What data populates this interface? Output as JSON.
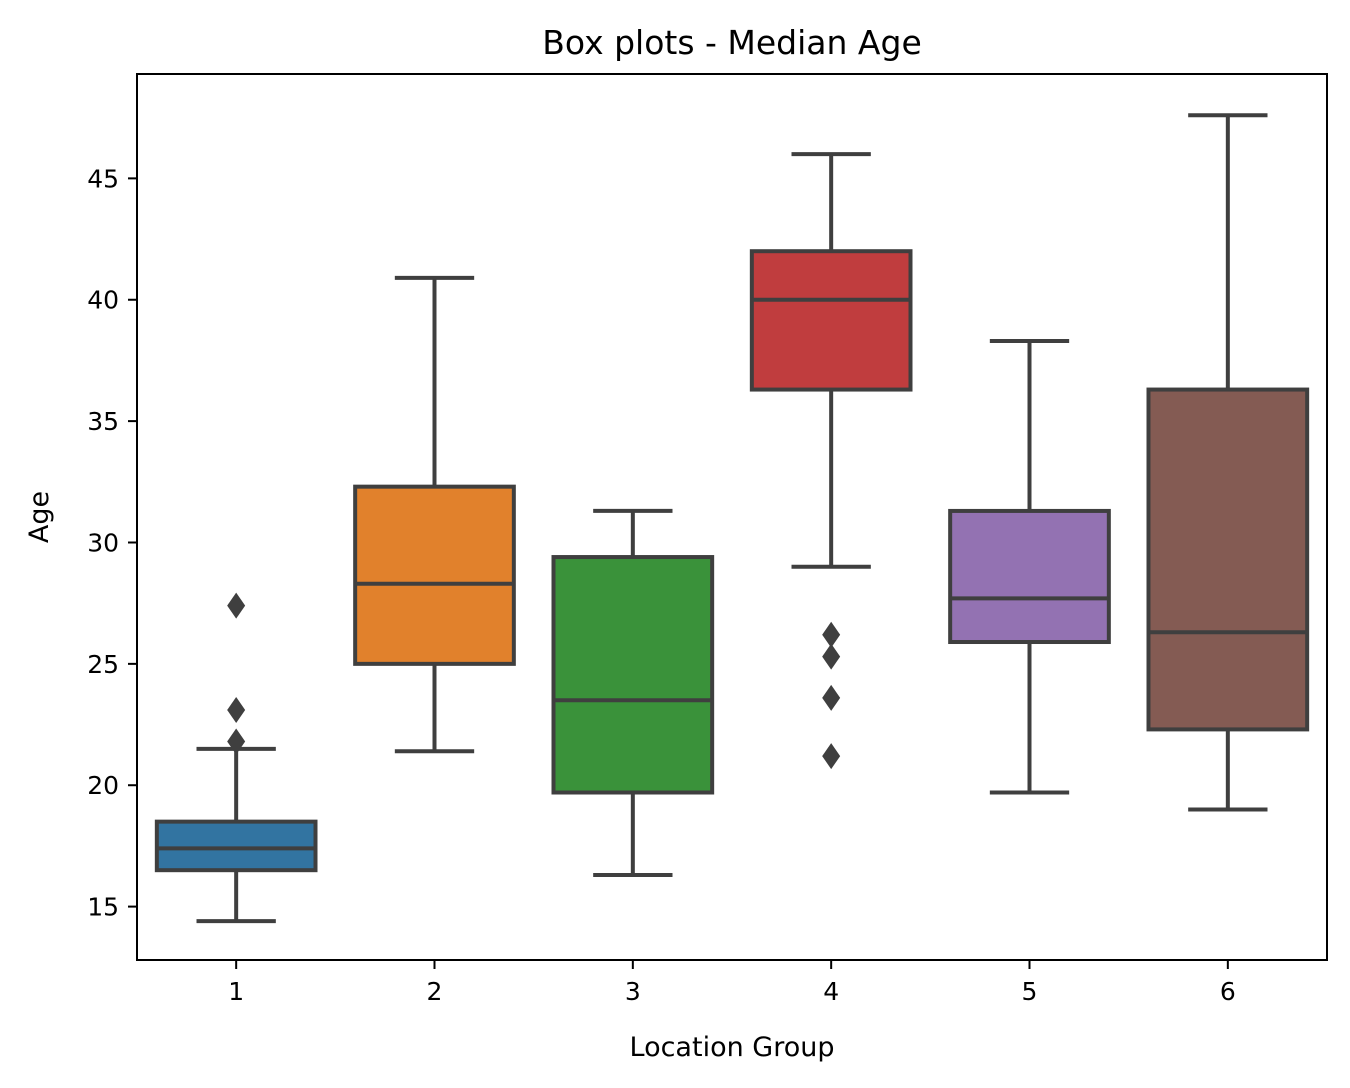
{
  "chart_data": {
    "type": "box",
    "title": "Box plots - Median Age",
    "xlabel": "Location Group",
    "ylabel": "Age",
    "ylim": [
      12.8,
      49.3
    ],
    "yticks": [
      15,
      20,
      25,
      30,
      35,
      40,
      45
    ],
    "grid": false,
    "categories": [
      "1",
      "2",
      "3",
      "4",
      "5",
      "6"
    ],
    "boxes": [
      {
        "category": "1",
        "color": "#3274a1",
        "whisker_low": 14.4,
        "q1": 16.5,
        "median": 17.4,
        "q3": 18.5,
        "whisker_high": 21.5,
        "outliers": [
          21.8,
          23.1,
          27.4
        ]
      },
      {
        "category": "2",
        "color": "#e1812c",
        "whisker_low": 21.4,
        "q1": 25.0,
        "median": 28.3,
        "q3": 32.3,
        "whisker_high": 40.9,
        "outliers": []
      },
      {
        "category": "3",
        "color": "#3a923a",
        "whisker_low": 16.3,
        "q1": 19.7,
        "median": 23.5,
        "q3": 29.4,
        "whisker_high": 31.3,
        "outliers": []
      },
      {
        "category": "4",
        "color": "#c03d3e",
        "whisker_low": 29.0,
        "q1": 36.3,
        "median": 40.0,
        "q3": 42.0,
        "whisker_high": 46.0,
        "outliers": [
          21.2,
          23.6,
          25.3,
          26.2
        ]
      },
      {
        "category": "5",
        "color": "#9372b2",
        "whisker_low": 19.7,
        "q1": 25.9,
        "median": 27.7,
        "q3": 31.3,
        "whisker_high": 38.3,
        "outliers": []
      },
      {
        "category": "6",
        "color": "#845b53",
        "whisker_low": 19.0,
        "q1": 22.3,
        "median": 26.3,
        "q3": 36.3,
        "whisker_high": 47.6,
        "outliers": []
      }
    ]
  }
}
